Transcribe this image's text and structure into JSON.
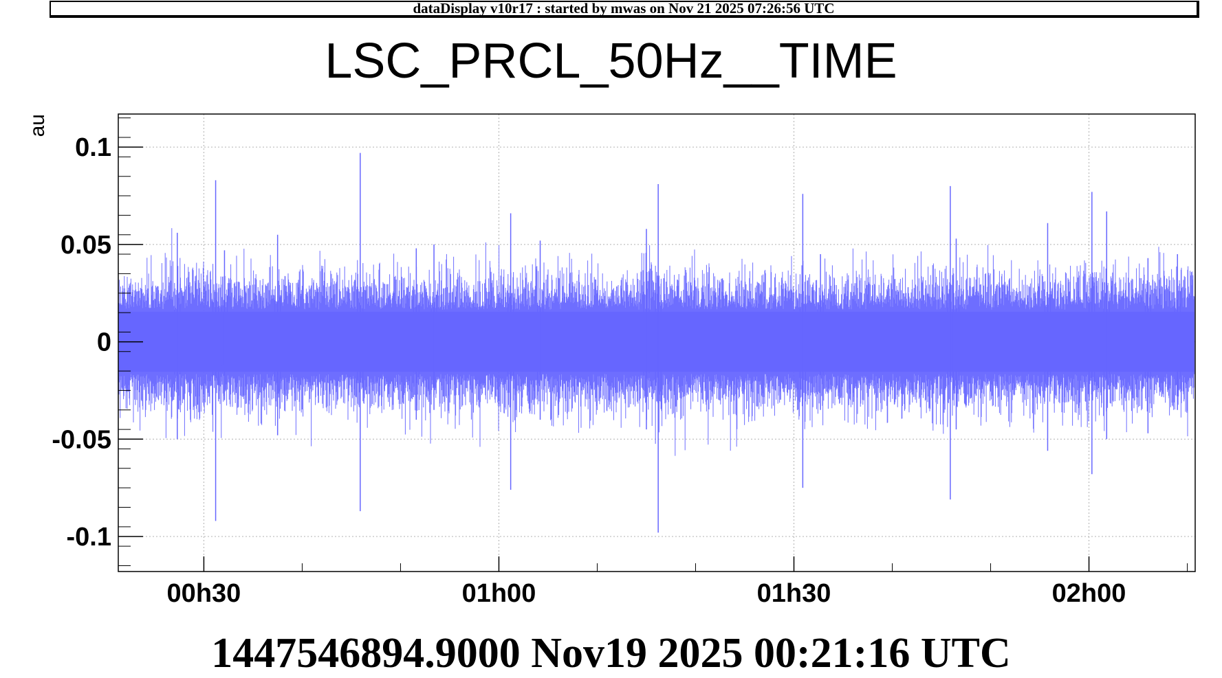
{
  "banner": {
    "text": "dataDisplay v10r17 : started by mwas on Nov 21 2025 07:26:56 UTC"
  },
  "chart_data": {
    "type": "line",
    "title": "LSC_PRCL_50Hz__TIME",
    "xlabel": "",
    "ylabel": "au",
    "x_reference_label": "1447546894.9000 Nov19 2025 00:21:16 UTC",
    "x_unit": "hours since 00h00 UTC",
    "xlim": [
      0.355,
      2.18
    ],
    "ylim": [
      -0.118,
      0.117
    ],
    "grid": true,
    "legend": "none",
    "series_color": "#6666ff",
    "x_ticks": [
      {
        "value": 0.5,
        "label": "00h30"
      },
      {
        "value": 1.0,
        "label": "01h00"
      },
      {
        "value": 1.5,
        "label": "01h30"
      },
      {
        "value": 2.0,
        "label": "02h00"
      }
    ],
    "y_ticks": [
      {
        "value": 0.1,
        "label": "0.1"
      },
      {
        "value": 0.05,
        "label": "0.05"
      },
      {
        "value": 0,
        "label": "0"
      },
      {
        "value": -0.05,
        "label": "-0.05"
      },
      {
        "value": -0.1,
        "label": "-0.1"
      }
    ],
    "series": [
      {
        "envelope": {
          "noise_band": [
            -0.022,
            0.022
          ],
          "typical_extremes": [
            -0.035,
            0.035
          ]
        },
        "spikes": [
          {
            "x": 0.455,
            "max": 0.056,
            "min": -0.05
          },
          {
            "x": 0.52,
            "max": 0.083,
            "min": -0.092
          },
          {
            "x": 0.535,
            "max": 0.047,
            "min": -0.03
          },
          {
            "x": 0.625,
            "max": 0.055,
            "min": -0.048
          },
          {
            "x": 0.765,
            "max": 0.097,
            "min": -0.087
          },
          {
            "x": 0.86,
            "max": 0.048,
            "min": -0.04
          },
          {
            "x": 0.89,
            "max": 0.05,
            "min": -0.035
          },
          {
            "x": 1.02,
            "max": 0.066,
            "min": -0.076
          },
          {
            "x": 1.07,
            "max": 0.052,
            "min": -0.04
          },
          {
            "x": 1.27,
            "max": 0.081,
            "min": -0.098
          },
          {
            "x": 1.25,
            "max": 0.058,
            "min": -0.045
          },
          {
            "x": 1.515,
            "max": 0.076,
            "min": -0.075
          },
          {
            "x": 1.545,
            "max": 0.045,
            "min": -0.035
          },
          {
            "x": 1.765,
            "max": 0.08,
            "min": -0.081
          },
          {
            "x": 1.775,
            "max": 0.053,
            "min": -0.045
          },
          {
            "x": 1.93,
            "max": 0.061,
            "min": -0.056
          },
          {
            "x": 2.005,
            "max": 0.077,
            "min": -0.068
          },
          {
            "x": 2.03,
            "max": 0.067,
            "min": -0.05
          },
          {
            "x": 2.1,
            "max": 0.043,
            "min": -0.047
          },
          {
            "x": 2.15,
            "max": 0.045,
            "min": -0.035
          }
        ]
      }
    ]
  }
}
